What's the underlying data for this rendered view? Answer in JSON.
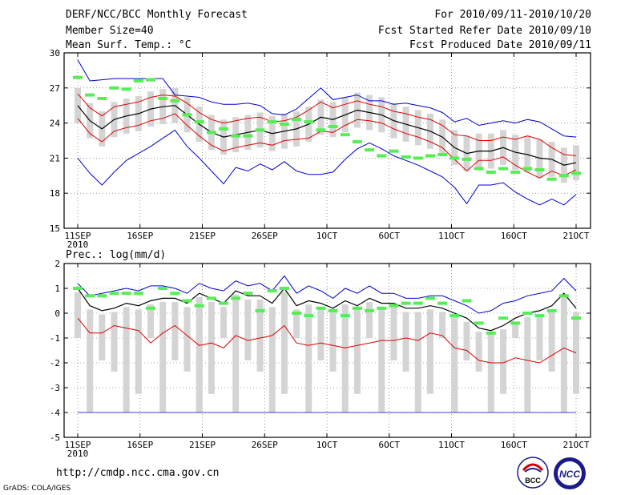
{
  "header": {
    "title": "DERF/NCC/BCC Monthly Forecast",
    "member_size": "Member Size=40",
    "variable": "Mean Surf. Temp.: °C",
    "period": "For 2010/09/11-2010/10/20",
    "fcst_started": "Fcst Started Refer Date 2010/09/10",
    "fcst_produced": "Fcst Produced Date 2010/09/11"
  },
  "footer": {
    "url": "http://cmdp.ncc.cma.gov.cn",
    "grads": "GrADS: COLA/IGES",
    "logo_bcc": "BCC",
    "logo_ncc": "NCC"
  },
  "colors": {
    "envelope": "#0000cc",
    "spread": "#dd0000",
    "mean": "#000000",
    "obs": "#55ee55",
    "box": "#d4d4d4",
    "grid": "#555555"
  },
  "chart_data": [
    {
      "type": "line",
      "name": "temperature",
      "ylabel": "Mean Surf. Temp.: °C",
      "ylim": [
        15,
        30
      ],
      "yticks": [
        15,
        18,
        21,
        24,
        27,
        30
      ],
      "xlim": [
        0,
        40
      ],
      "xtick_days": [
        0,
        5,
        10,
        15,
        20,
        25,
        30,
        35,
        40
      ],
      "xtick_labels": [
        "11SEP",
        "16SEP",
        "21SEP",
        "26SEP",
        "1OCT",
        "6OCT",
        "11OCT",
        "16OCT",
        "21OCT"
      ],
      "year_label": "2010",
      "grid": "dotted",
      "series": [
        {
          "name": "ensemble max",
          "values": [
            21.0,
            19.7,
            18.7,
            19.8,
            20.8,
            21.4,
            22.0,
            22.7,
            23.4,
            22.0,
            21.0,
            19.9,
            18.8,
            20.2,
            19.9,
            20.5,
            20.0,
            20.7,
            19.9,
            19.6,
            19.6,
            19.8,
            20.9,
            21.8,
            22.3,
            21.8,
            21.2,
            20.8,
            20.4,
            19.9,
            19.4,
            18.5,
            17.1,
            18.7,
            18.7,
            18.9,
            18.1,
            17.5,
            17.0,
            17.5,
            17.0,
            17.9
          ]
        },
        {
          "name": "ensemble min",
          "values": [
            29.4,
            27.6,
            27.7,
            27.8,
            27.8,
            27.8,
            27.8,
            27.8,
            26.4,
            26.3,
            26.2,
            25.8,
            25.6,
            25.6,
            25.7,
            25.5,
            24.8,
            24.7,
            25.2,
            26.1,
            27.0,
            26.0,
            26.2,
            26.4,
            25.9,
            25.9,
            25.6,
            25.7,
            25.5,
            25.3,
            24.9,
            24.1,
            24.4,
            23.8,
            24.0,
            24.2,
            24.0,
            24.3,
            24.1,
            23.5,
            22.9,
            22.8
          ]
        },
        {
          "name": "spread lower",
          "values": [
            24.4,
            23.1,
            22.4,
            23.3,
            23.6,
            23.8,
            24.2,
            24.4,
            24.8,
            23.8,
            22.9,
            22.1,
            21.6,
            21.9,
            22.1,
            22.3,
            22.1,
            22.5,
            22.6,
            22.7,
            23.3,
            23.2,
            23.8,
            24.3,
            24.2,
            24.0,
            23.5,
            23.1,
            22.8,
            22.4,
            21.9,
            20.9,
            19.9,
            20.8,
            20.8,
            21.1,
            20.4,
            19.8,
            19.3,
            19.9,
            19.5,
            20.0
          ]
        },
        {
          "name": "spread upper",
          "values": [
            26.5,
            25.3,
            24.6,
            25.4,
            25.6,
            25.8,
            26.2,
            26.4,
            26.3,
            25.7,
            24.9,
            24.3,
            24.0,
            24.2,
            24.4,
            24.5,
            24.1,
            24.2,
            24.5,
            25.1,
            25.8,
            25.3,
            25.6,
            25.9,
            25.6,
            25.4,
            25.0,
            24.8,
            24.5,
            24.3,
            23.8,
            23.0,
            22.9,
            22.5,
            22.5,
            22.8,
            22.6,
            22.9,
            22.6,
            21.9,
            21.3,
            21.2
          ]
        },
        {
          "name": "ensemble mean",
          "values": [
            25.5,
            24.2,
            23.5,
            24.3,
            24.6,
            24.8,
            25.2,
            25.4,
            25.5,
            24.7,
            23.9,
            23.2,
            22.8,
            23.0,
            23.2,
            23.4,
            23.1,
            23.3,
            23.5,
            23.9,
            24.5,
            24.3,
            24.7,
            25.1,
            24.9,
            24.7,
            24.2,
            23.9,
            23.6,
            23.3,
            22.8,
            21.9,
            21.4,
            21.6,
            21.6,
            21.9,
            21.5,
            21.3,
            21.0,
            20.9,
            20.4,
            20.6
          ]
        },
        {
          "name": "observed",
          "values": [
            27.9,
            26.4,
            26.1,
            27.0,
            26.9,
            27.6,
            27.7,
            26.1,
            25.9,
            24.7,
            24.1,
            23.2,
            23.5,
            22.9,
            22.9,
            23.4,
            24.1,
            23.9,
            24.3,
            24.1,
            23.4,
            23.7,
            23.0,
            22.4,
            21.7,
            21.2,
            21.6,
            21.1,
            21.0,
            21.2,
            21.3,
            21.0,
            20.9,
            20.1,
            19.8,
            20.1,
            19.8,
            20.1,
            20.0,
            19.2,
            19.5,
            19.7
          ]
        }
      ]
    },
    {
      "type": "line",
      "name": "precipitation",
      "ylabel": "Prec.: log(mm/d)",
      "ylim": [
        -5,
        2
      ],
      "yticks": [
        -5,
        -4,
        -3,
        -2,
        -1,
        0,
        1,
        2
      ],
      "xlim": [
        0,
        40
      ],
      "xtick_days": [
        0,
        5,
        10,
        15,
        20,
        25,
        30,
        35,
        40
      ],
      "xtick_labels": [
        "11SEP",
        "16SEP",
        "21SEP",
        "26SEP",
        "1OCT",
        "6OCT",
        "11OCT",
        "16OCT",
        "21OCT"
      ],
      "year_label": "2010",
      "grid": "dotted",
      "series": [
        {
          "name": "ensemble max",
          "values": [
            1.2,
            0.7,
            0.8,
            0.9,
            1.0,
            0.9,
            1.1,
            1.1,
            1.0,
            0.8,
            1.2,
            1.0,
            0.9,
            1.3,
            1.1,
            1.2,
            0.9,
            1.5,
            0.8,
            1.1,
            0.9,
            0.6,
            1.0,
            0.8,
            1.1,
            0.8,
            0.8,
            0.6,
            0.6,
            0.7,
            0.7,
            0.5,
            0.3,
            0.0,
            0.1,
            0.4,
            0.5,
            0.7,
            0.8,
            0.9,
            1.4,
            0.9
          ]
        },
        {
          "name": "ensemble min",
          "values": [
            -0.2,
            -0.8,
            -0.8,
            -0.5,
            -0.6,
            -0.7,
            -1.2,
            -0.8,
            -0.5,
            -0.9,
            -1.3,
            -1.2,
            -1.4,
            -0.9,
            -1.1,
            -1.0,
            -0.9,
            -0.5,
            -1.2,
            -1.3,
            -1.2,
            -1.3,
            -1.4,
            -1.3,
            -1.2,
            -1.1,
            -1.1,
            -1.0,
            -1.1,
            -0.8,
            -0.9,
            -1.4,
            -1.5,
            -1.9,
            -2.0,
            -2.0,
            -1.8,
            -1.9,
            -2.0,
            -1.7,
            -1.4,
            -1.6
          ]
        },
        {
          "name": "ensemble mean",
          "values": [
            1.0,
            0.3,
            0.1,
            0.2,
            0.4,
            0.3,
            0.5,
            0.6,
            0.6,
            0.4,
            0.8,
            0.6,
            0.4,
            0.9,
            0.7,
            0.7,
            0.4,
            1.0,
            0.3,
            0.5,
            0.4,
            0.2,
            0.5,
            0.3,
            0.6,
            0.4,
            0.4,
            0.2,
            0.2,
            0.3,
            0.2,
            0.0,
            -0.2,
            -0.6,
            -0.7,
            -0.5,
            -0.2,
            0.0,
            0.1,
            0.3,
            0.8,
            0.2
          ]
        },
        {
          "name": "spread lower",
          "values": [
            -4.0,
            -4.0,
            -4.0,
            -4.0,
            -4.0,
            -4.0,
            -4.0,
            -4.0,
            -4.0,
            -4.0,
            -4.0,
            -4.0,
            -4.0,
            -4.0,
            -4.0,
            -4.0,
            -4.0,
            -4.0,
            -4.0,
            -4.0,
            -4.0,
            -4.0,
            -4.0,
            -4.0,
            -4.0,
            -4.0,
            -4.0,
            -4.0,
            -4.0,
            -4.0,
            -4.0,
            -4.0,
            -4.0,
            -4.0,
            -4.0,
            -4.0,
            -4.0,
            -4.0,
            -4.0,
            -4.0,
            -4.0,
            -4.0
          ]
        },
        {
          "name": "observed",
          "values": [
            1.0,
            0.7,
            0.7,
            0.8,
            0.8,
            0.8,
            0.2,
            1.0,
            0.8,
            0.5,
            0.3,
            0.6,
            0.4,
            0.6,
            0.8,
            0.1,
            0.9,
            1.0,
            0.0,
            -0.1,
            0.2,
            0.1,
            -0.1,
            0.2,
            0.1,
            0.2,
            0.3,
            0.4,
            0.4,
            0.6,
            0.4,
            -0.1,
            0.5,
            -0.4,
            -0.8,
            -0.2,
            -0.4,
            0.0,
            -0.1,
            0.1,
            0.7,
            -0.2
          ]
        }
      ]
    }
  ]
}
